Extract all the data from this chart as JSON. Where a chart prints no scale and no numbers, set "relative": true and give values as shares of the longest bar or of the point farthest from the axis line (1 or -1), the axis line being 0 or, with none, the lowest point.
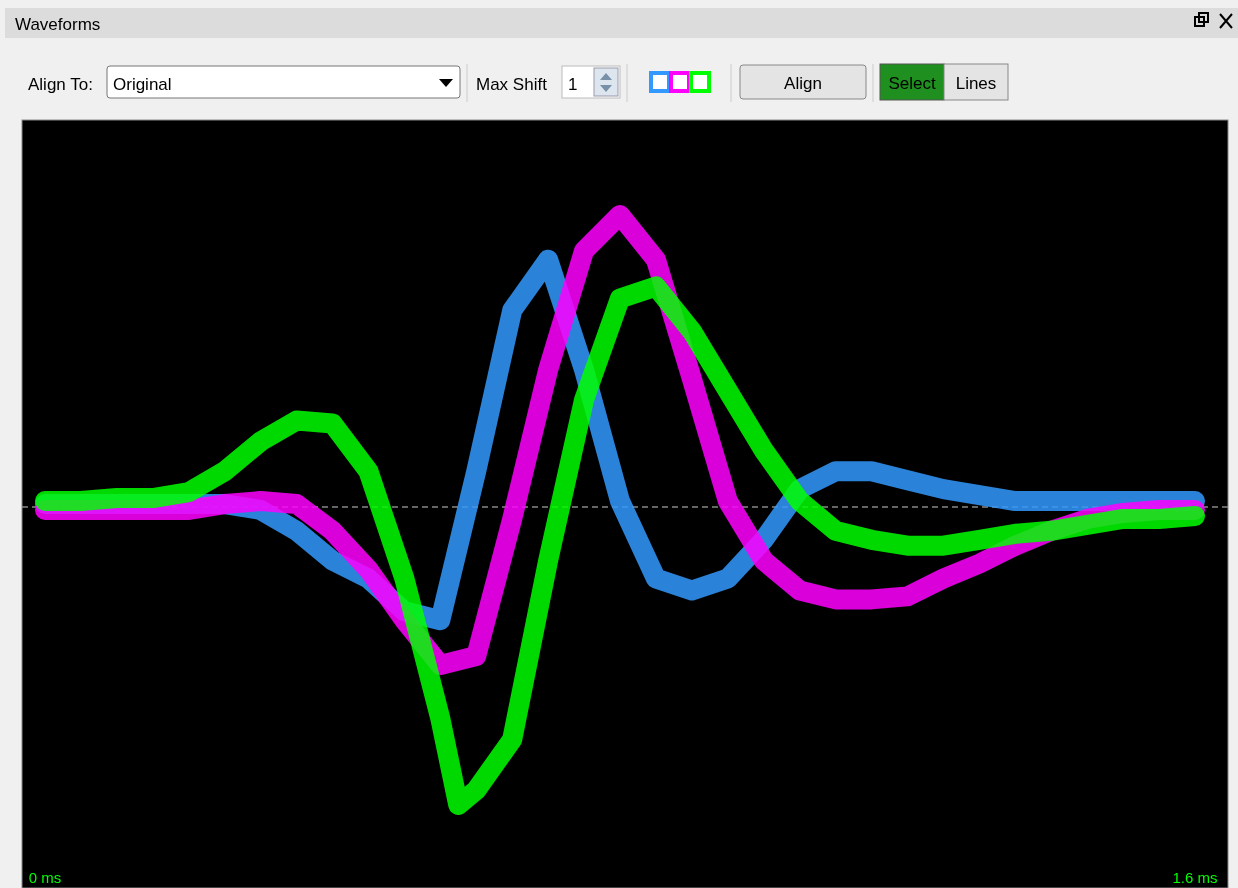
{
  "chart_data": {
    "type": "line",
    "title": "Waveforms",
    "relative": true,
    "x": [
      0,
      0.05,
      0.1,
      0.15,
      0.2,
      0.25,
      0.3,
      0.35,
      0.4,
      0.45,
      0.5,
      0.55,
      0.6,
      0.65,
      0.7,
      0.75,
      0.8,
      0.85,
      0.9,
      0.95,
      1.0,
      1.05,
      1.1,
      1.15,
      1.2,
      1.25,
      1.3,
      1.35,
      1.4,
      1.45,
      1.5,
      1.55,
      1.6
    ],
    "xlim": [
      0,
      1.6
    ],
    "xticks": [
      {
        "value": 0,
        "label": "0 ms"
      },
      {
        "value": 1.6,
        "label": "1.6 ms"
      }
    ],
    "tick_labels": "x",
    "ref_lines": [
      {
        "axis": "y",
        "value": 0,
        "color": "#888888",
        "line_style": "dashed"
      }
    ],
    "series": [
      {
        "color": "#3399ff",
        "values": [
          0.01,
          0.01,
          0.01,
          0.01,
          0.01,
          0.01,
          -0.01,
          -0.08,
          -0.18,
          -0.24,
          -0.35,
          -0.38,
          0.12,
          0.66,
          0.83,
          0.46,
          0.02,
          -0.24,
          -0.28,
          -0.24,
          -0.11,
          0.06,
          0.12,
          0.12,
          0.09,
          0.06,
          0.04,
          0.02,
          0.02,
          0.02,
          0.02,
          0.02,
          0.02
        ]
      },
      {
        "color": "#ff00ff",
        "values": [
          -0.01,
          -0.01,
          -0.01,
          -0.01,
          -0.01,
          0.01,
          0.02,
          0.01,
          -0.08,
          -0.21,
          -0.38,
          -0.53,
          -0.5,
          -0.04,
          0.46,
          0.86,
          0.98,
          0.83,
          0.43,
          0.02,
          -0.18,
          -0.28,
          -0.31,
          -0.31,
          -0.3,
          -0.24,
          -0.19,
          -0.13,
          -0.08,
          -0.04,
          -0.02,
          -0.01,
          -0.01
        ]
      },
      {
        "color": "#00ff00",
        "x": [
          0,
          0.05,
          0.1,
          0.15,
          0.2,
          0.25,
          0.3,
          0.35,
          0.4,
          0.45,
          0.5,
          0.55,
          0.575,
          0.6,
          0.65,
          0.7,
          0.75,
          0.8,
          0.85,
          0.9,
          0.95,
          1.0,
          1.05,
          1.1,
          1.15,
          1.2,
          1.25,
          1.3,
          1.35,
          1.4,
          1.45,
          1.5,
          1.55,
          1.6
        ],
        "values": [
          0.02,
          0.02,
          0.03,
          0.03,
          0.05,
          0.12,
          0.22,
          0.29,
          0.28,
          0.12,
          -0.24,
          -0.71,
          -1.0,
          -0.95,
          -0.78,
          -0.18,
          0.36,
          0.7,
          0.74,
          0.59,
          0.39,
          0.19,
          0.02,
          -0.08,
          -0.11,
          -0.13,
          -0.13,
          -0.11,
          -0.09,
          -0.08,
          -0.06,
          -0.04,
          -0.04,
          -0.03
        ]
      }
    ],
    "annotations": [
      "Align To:",
      "Original",
      "Max Shift",
      "1",
      "Align",
      "Select",
      "Lines"
    ]
  }
}
